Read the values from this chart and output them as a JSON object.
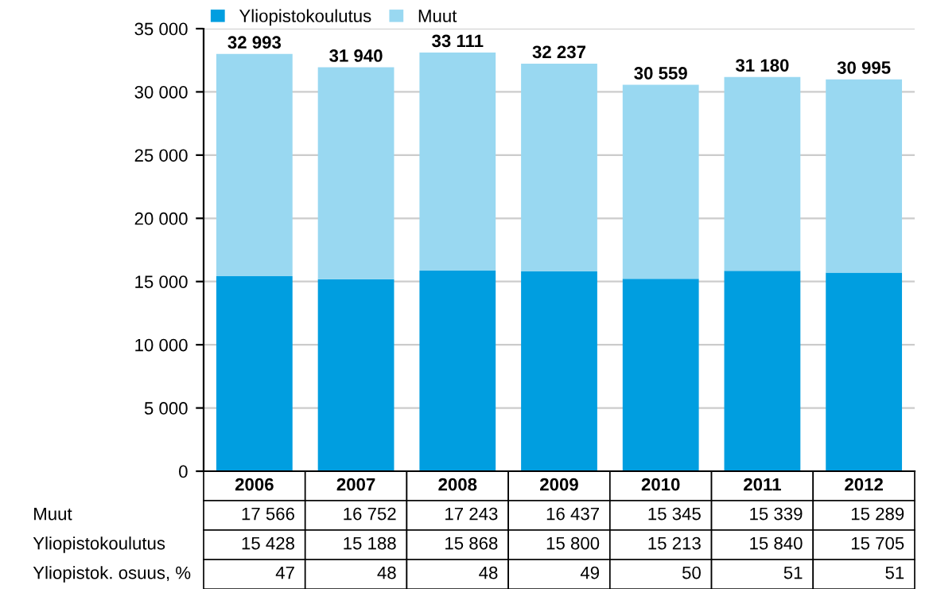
{
  "chart_data": {
    "type": "bar",
    "stacked": true,
    "categories": [
      "2006",
      "2007",
      "2008",
      "2009",
      "2010",
      "2011",
      "2012"
    ],
    "series": [
      {
        "name": "Yliopistokoulutus",
        "color": "#009ee0",
        "values": [
          15428,
          15188,
          15868,
          15800,
          15213,
          15840,
          15705
        ]
      },
      {
        "name": "Muut",
        "color": "#99d8f1",
        "values": [
          17566,
          16752,
          17243,
          16437,
          15345,
          15339,
          15289
        ]
      }
    ],
    "totals": [
      "32 993",
      "31 940",
      "33 111",
      "32 237",
      "30 559",
      "31 180",
      "30 995"
    ],
    "data_labels": true,
    "annotations": [
      "Yliopistok. osuus, %",
      "47",
      "48",
      "48",
      "49",
      "50",
      "51",
      "51"
    ],
    "ylim": [
      0,
      35000
    ],
    "yticks": [
      0,
      {
        "value": 5000,
        "label": "5 000"
      },
      {
        "value": 10000,
        "label": "10 000"
      },
      {
        "value": 15000,
        "label": "15 000"
      },
      {
        "value": 20000,
        "label": "20 000"
      },
      {
        "value": 25000,
        "label": "25 000"
      },
      {
        "value": 30000,
        "label": "30 000"
      },
      {
        "value": 35000,
        "label": "35 000"
      }
    ],
    "grid": "y",
    "legend": "top left"
  }
}
